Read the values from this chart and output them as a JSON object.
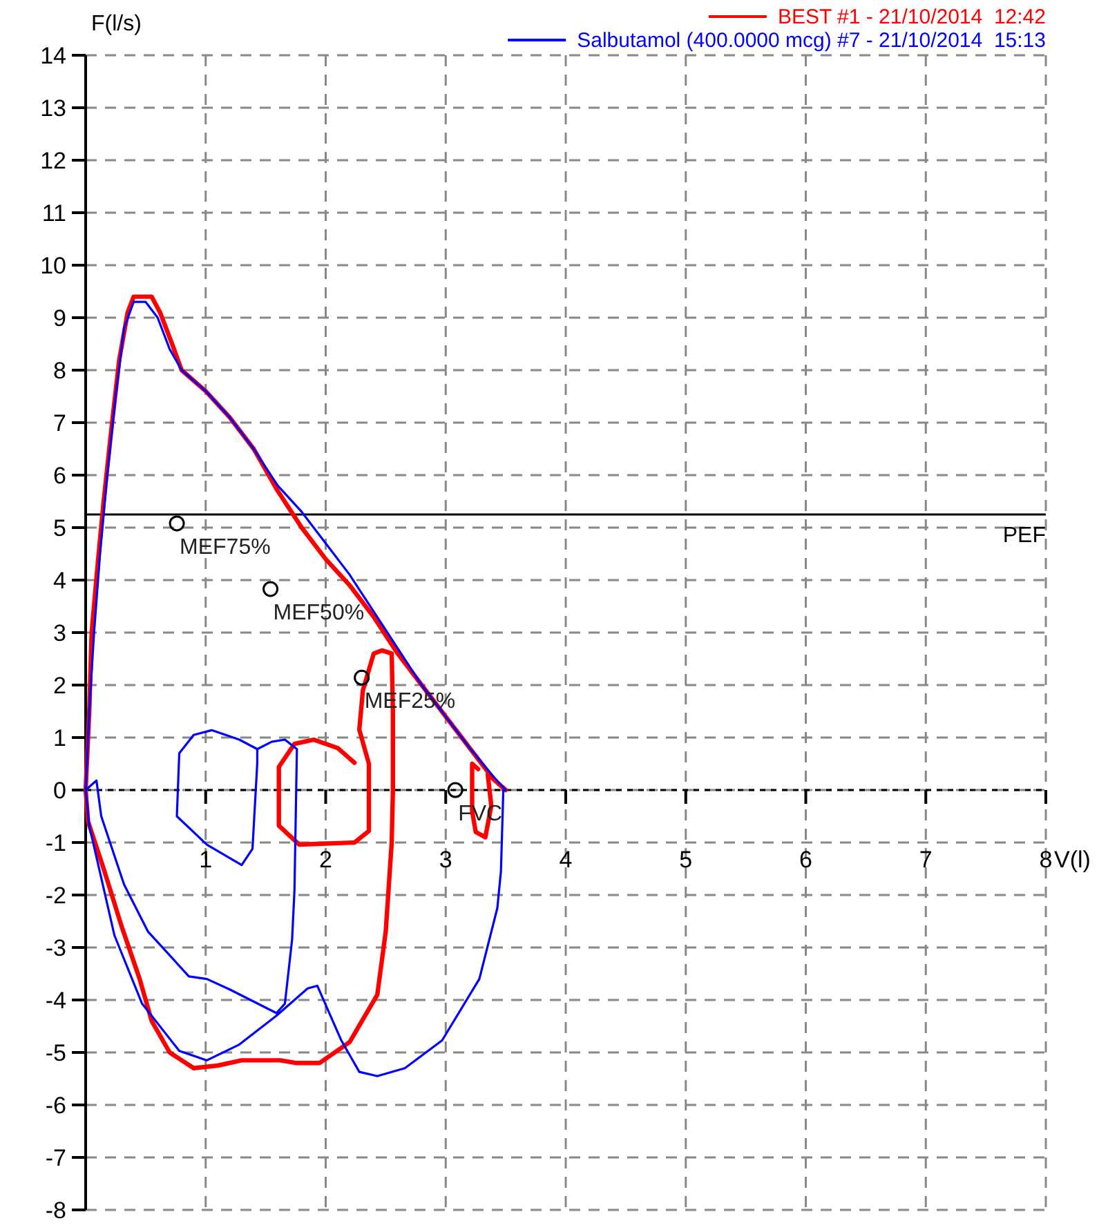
{
  "chart_data": {
    "type": "line",
    "xlabel": "V(l)",
    "ylabel": "F(l/s)",
    "xlim": [
      0,
      8
    ],
    "ylim": [
      -8,
      14
    ],
    "xticks": [
      {
        "value": 0,
        "label": null
      },
      1,
      2,
      3,
      4,
      5,
      6,
      7,
      8
    ],
    "yticks": [
      -8,
      -7,
      -6,
      -5,
      -4,
      -3,
      -2,
      -1,
      0,
      1,
      2,
      3,
      4,
      5,
      6,
      7,
      8,
      9,
      10,
      11,
      12,
      13,
      14
    ],
    "grid": true,
    "legend": "top right",
    "marker": "none",
    "line_style": "solid",
    "ref_lines": [
      {
        "axis": "y",
        "value": 5.25,
        "label": "PEF",
        "color": "#000000"
      },
      {
        "axis": "y",
        "value": 0,
        "color": "#000000",
        "line_style": "dashed"
      }
    ],
    "annotations": [
      {
        "text": "MEF75%",
        "x": 0.76,
        "y": 5.08
      },
      {
        "text": "MEF50%",
        "x": 1.54,
        "y": 3.83
      },
      {
        "text": "MEF25%",
        "x": 2.3,
        "y": 2.14
      },
      {
        "text": "FVC",
        "x": 3.08,
        "y": 0
      }
    ],
    "series": [
      {
        "name": "BEST #1 - 21/10/2014  12:42",
        "color": "#ff0000",
        "x": [
          2.24,
          2.1,
          1.9,
          1.74,
          1.61,
          1.61,
          1.78,
          2.24,
          2.36,
          2.36,
          2.28,
          2.31,
          2.4,
          2.47,
          2.55,
          2.56,
          2.56,
          2.55,
          2.5,
          2.43,
          2.2,
          1.95,
          1.75,
          1.62,
          1.3,
          1.1,
          0.9,
          0.7,
          0.55,
          0.45,
          0.3,
          0.15,
          0.02,
          0,
          0.03,
          0.05,
          0.1,
          0.15,
          0.22,
          0.28,
          0.35,
          0.4,
          0.55,
          0.62,
          0.72,
          0.8,
          1.0,
          1.2,
          1.4,
          1.6,
          1.8,
          2.0,
          2.2,
          2.4,
          2.6,
          2.8,
          3.0,
          3.2,
          3.4,
          3.5,
          3.35,
          3.38,
          3.33,
          3.25,
          3.22,
          3.22,
          3.27
        ],
        "values": [
          0.52,
          0.8,
          0.96,
          0.88,
          0.44,
          -0.68,
          -1.04,
          -1.0,
          -0.78,
          0.5,
          1.15,
          1.9,
          2.6,
          2.66,
          2.6,
          1.5,
          0,
          -1.0,
          -2.7,
          -3.9,
          -4.8,
          -5.2,
          -5.2,
          -5.15,
          -5.15,
          -5.25,
          -5.3,
          -5.0,
          -4.4,
          -3.6,
          -2.6,
          -1.5,
          -0.6,
          0,
          1.5,
          3,
          4.3,
          5.5,
          7,
          8.2,
          9.1,
          9.4,
          9.4,
          9.1,
          8.5,
          8.0,
          7.6,
          7.1,
          6.5,
          5.7,
          5.0,
          4.4,
          3.9,
          3.3,
          2.6,
          2.0,
          1.4,
          0.8,
          0.2,
          0,
          0.3,
          -0.3,
          -0.9,
          -0.8,
          -0.4,
          0.5,
          0.4
        ]
      },
      {
        "name": "Salbutamol (400.0000 mcg) #7 - 21/10/2014  15:13",
        "color": "#0000ff",
        "x": [
          0,
          0.03,
          0.07,
          0.12,
          0.18,
          0.25,
          0.32,
          0.4,
          0.5,
          0.6,
          0.7,
          0.8,
          1.0,
          1.2,
          1.4,
          1.6,
          1.8,
          2.0,
          2.2,
          2.4,
          2.6,
          2.8,
          3.0,
          3.2,
          3.4,
          3.5,
          3.48,
          3.46,
          3.43,
          3.28,
          2.97,
          2.66,
          2.43,
          2.28,
          2.13,
          1.93,
          1.85,
          1.59,
          1.28,
          1.01,
          0.78,
          0.47,
          0.24,
          0.03,
          0,
          0.09,
          0.13,
          0.32,
          0.52,
          0.86,
          1.01,
          1.2,
          1.59,
          1.66,
          1.72,
          1.74,
          1.76,
          1.66,
          1.55,
          1.43,
          1.28,
          1.05,
          0.9,
          0.78,
          0.76,
          1.01,
          1.3,
          1.39,
          1.43,
          1.43
        ],
        "values": [
          0,
          1.5,
          3,
          4.5,
          6,
          7.5,
          8.8,
          9.3,
          9.3,
          9.0,
          8.4,
          8.0,
          7.6,
          7.1,
          6.5,
          5.8,
          5.3,
          4.7,
          4.1,
          3.4,
          2.7,
          2.0,
          1.4,
          0.8,
          0.25,
          0,
          0,
          -1.55,
          -2.25,
          -3.6,
          -4.77,
          -5.3,
          -5.45,
          -5.37,
          -4.77,
          -3.73,
          -3.78,
          -4.3,
          -4.85,
          -5.15,
          -4.97,
          -4.07,
          -2.77,
          -0.68,
          0,
          0.18,
          -0.5,
          -1.8,
          -2.7,
          -3.55,
          -3.6,
          -3.8,
          -4.25,
          -4.07,
          -2.85,
          -1.9,
          0.78,
          0.96,
          0.92,
          0.78,
          0.96,
          1.14,
          1.05,
          0.7,
          -0.5,
          -1.04,
          -1.43,
          -1.12,
          0.52,
          0.78
        ]
      }
    ]
  }
}
